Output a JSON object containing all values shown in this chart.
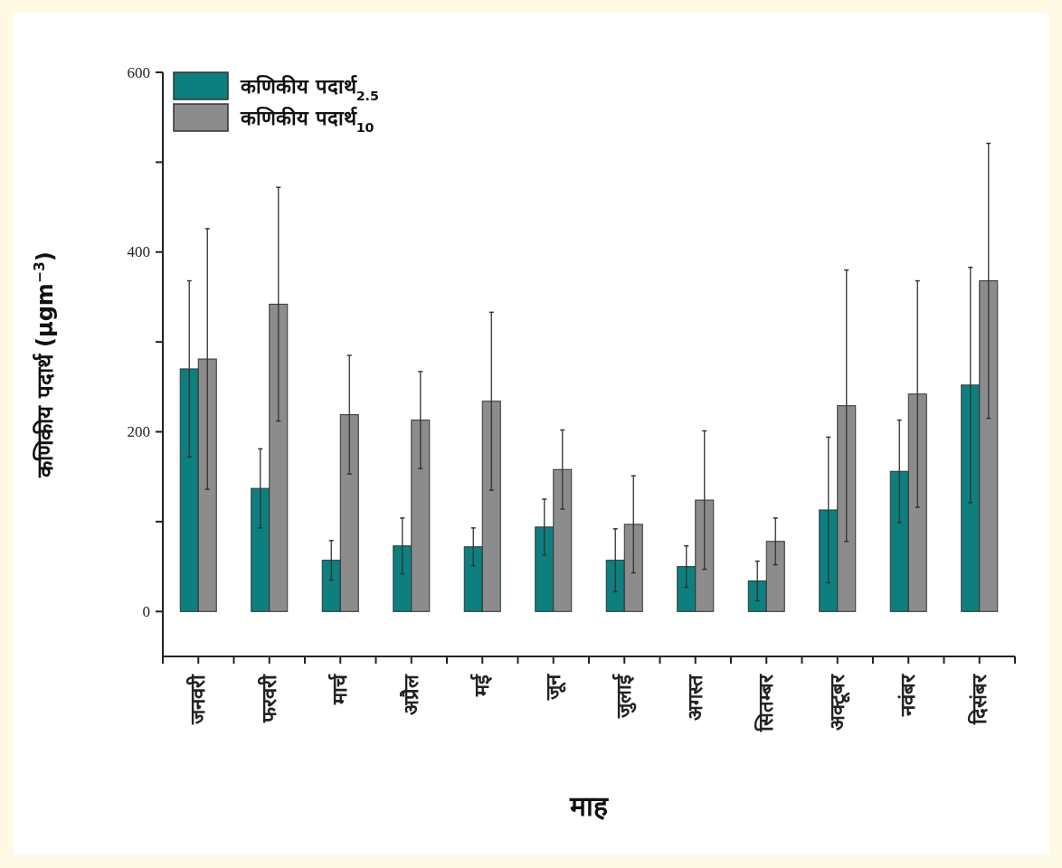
{
  "chart_data": {
    "type": "bar",
    "xlabel": "माह",
    "ylabel": "कणिकीय पदार्थ (µgm$^{−3}$)",
    "categories": [
      "जनवरी",
      "फरवरी",
      "मार्च",
      "अप्रैल",
      "मई",
      "जून",
      "जुलाई",
      "अगस्त",
      "सितम्बर",
      "अक्टूबर",
      "नवंबर",
      "दिसंबर"
    ],
    "series": [
      {
        "name": "कणिकीय पदार्थ$_{2.5}$",
        "color": "#0e7f7f",
        "values": [
          270,
          137,
          57,
          73,
          72,
          94,
          57,
          50,
          34,
          113,
          156,
          252
        ],
        "errors": [
          98,
          44,
          22,
          31,
          21,
          31,
          35,
          23,
          22,
          81,
          57,
          131
        ]
      },
      {
        "name": "कणिकीय पदार्थ$_{10}$",
        "color": "#8c8c8c",
        "values": [
          281,
          342,
          219,
          213,
          234,
          158,
          97,
          124,
          78,
          229,
          242,
          368
        ],
        "errors": [
          145,
          130,
          66,
          54,
          99,
          44,
          54,
          77,
          26,
          151,
          126,
          153
        ]
      }
    ],
    "ylim": [
      -50,
      600
    ],
    "yticks": [
      0,
      {
        "value": 100,
        "label": null
      },
      200,
      {
        "value": 300,
        "label": null
      },
      400,
      {
        "value": 500,
        "label": null
      },
      600
    ],
    "legend": "top left",
    "grid": false
  }
}
